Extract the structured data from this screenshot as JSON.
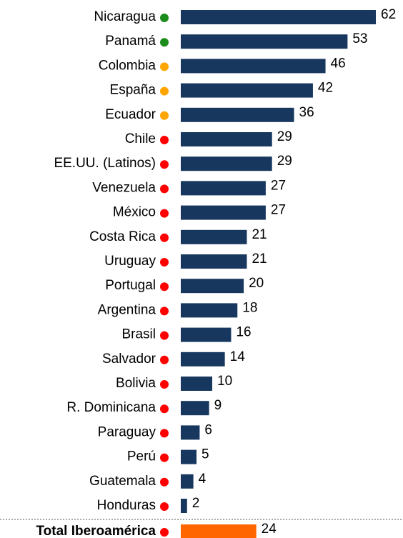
{
  "chart_data": {
    "type": "bar",
    "orientation": "horizontal",
    "categories": [
      "Nicaragua",
      "Panamá",
      "Colombia",
      "España",
      "Ecuador",
      "Chile",
      "EE.UU. (Latinos)",
      "Venezuela",
      "México",
      "Costa Rica",
      "Uruguay",
      "Portugal",
      "Argentina",
      "Brasil",
      "Salvador",
      "Bolivia",
      "R. Dominicana",
      "Paraguay",
      "Perú",
      "Guatemala",
      "Honduras",
      "Total Iberoamérica"
    ],
    "values": [
      62,
      53,
      46,
      42,
      36,
      29,
      29,
      27,
      27,
      21,
      21,
      20,
      18,
      16,
      14,
      10,
      9,
      6,
      5,
      4,
      2,
      24
    ],
    "bar_colors": [
      "#17375e",
      "#17375e",
      "#17375e",
      "#17375e",
      "#17375e",
      "#17375e",
      "#17375e",
      "#17375e",
      "#17375e",
      "#17375e",
      "#17375e",
      "#17375e",
      "#17375e",
      "#17375e",
      "#17375e",
      "#17375e",
      "#17375e",
      "#17375e",
      "#17375e",
      "#17375e",
      "#17375e",
      "#ff6600"
    ],
    "marker_colors": [
      "#1a8c1a",
      "#1a8c1a",
      "#ffa500",
      "#ffa500",
      "#ffa500",
      "#ff0000",
      "#ff0000",
      "#ff0000",
      "#ff0000",
      "#ff0000",
      "#ff0000",
      "#ff0000",
      "#ff0000",
      "#ff0000",
      "#ff0000",
      "#ff0000",
      "#ff0000",
      "#ff0000",
      "#ff0000",
      "#ff0000",
      "#ff0000",
      "#ff0000"
    ],
    "bold": [
      false,
      false,
      false,
      false,
      false,
      false,
      false,
      false,
      false,
      false,
      false,
      false,
      false,
      false,
      false,
      false,
      false,
      false,
      false,
      false,
      false,
      true
    ],
    "xlim": [
      0,
      62
    ]
  }
}
